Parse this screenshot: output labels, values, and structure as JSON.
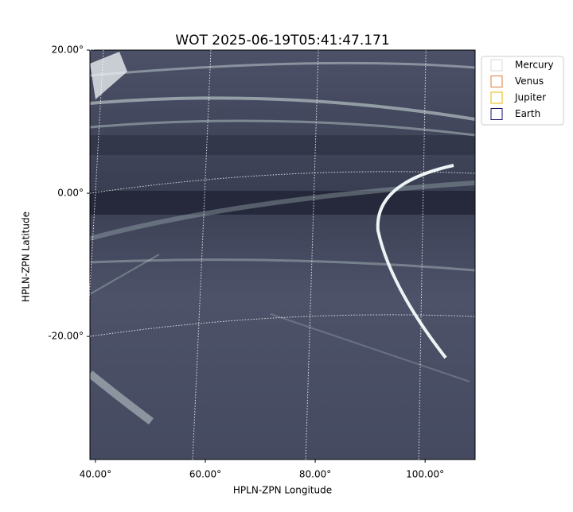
{
  "chart_data": {
    "type": "image",
    "title": "WOT 2025-06-19T05:41:47.171",
    "xlabel": "HPLN-ZPN Longitude",
    "ylabel": "HPLN-ZPN Latitude",
    "xlim": [
      39,
      109.1
    ],
    "ylim": [
      -37.2,
      20
    ],
    "xticks": [
      {
        "value": 40,
        "label": "40.00°"
      },
      {
        "value": 60,
        "label": "60.00°"
      },
      {
        "value": 80,
        "label": "80.00°"
      },
      {
        "value": 100,
        "label": "100.00°"
      }
    ],
    "yticks": [
      {
        "value": 20,
        "label": "20.00°"
      },
      {
        "value": 0,
        "label": "0.00°"
      },
      {
        "value": -20,
        "label": "-20.00°"
      }
    ],
    "grid": true,
    "legend": [
      {
        "name": "Mercury",
        "color": "#d9d9d9"
      },
      {
        "name": "Venus",
        "color": "#e07b39"
      },
      {
        "name": "Jupiter",
        "color": "#e8b400"
      },
      {
        "name": "Earth",
        "color": "#101070"
      }
    ]
  }
}
